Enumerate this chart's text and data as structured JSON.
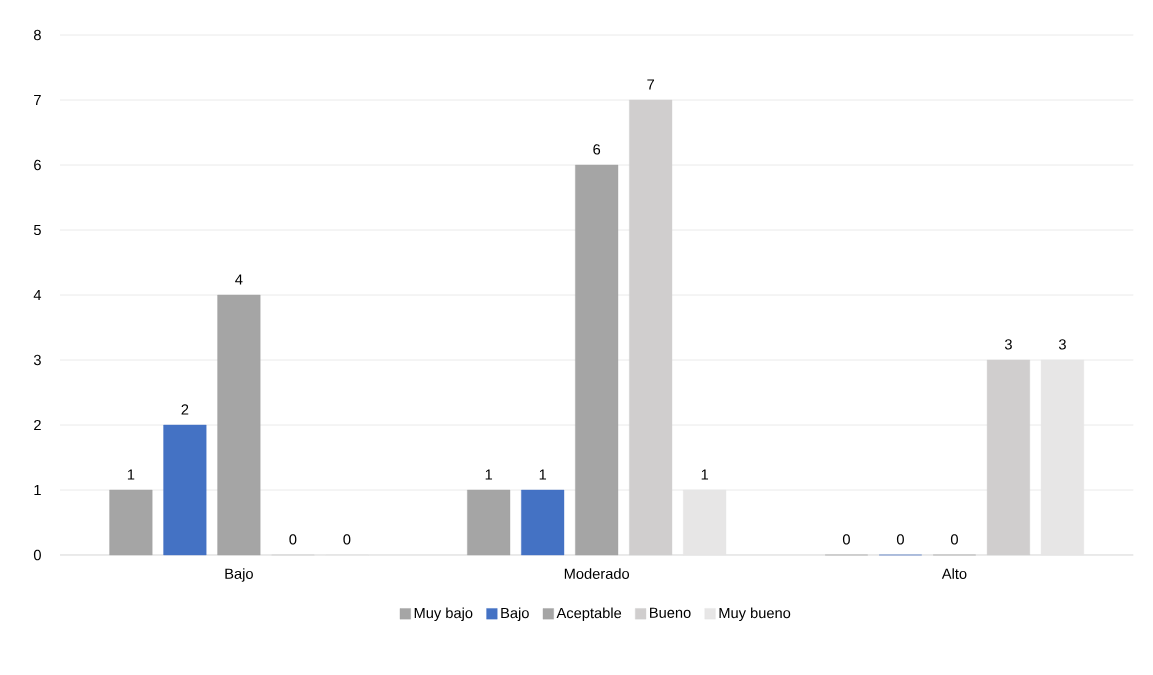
{
  "chart_data": {
    "type": "bar",
    "categories": [
      "Bajo",
      "Moderado",
      "Alto"
    ],
    "series": [
      {
        "name": "Muy bajo",
        "color": "#a5a5a5",
        "values": [
          1,
          1,
          0
        ],
        "value_labels": [
          "1",
          "1",
          "0"
        ]
      },
      {
        "name": "Bajo",
        "color": "#4472c4",
        "values": [
          2,
          1,
          0
        ],
        "value_labels": [
          "2",
          "1",
          "0"
        ]
      },
      {
        "name": "Aceptable",
        "color": "#a5a5a5",
        "values": [
          4,
          6,
          0
        ],
        "value_labels": [
          "4",
          "6",
          "0"
        ]
      },
      {
        "name": "Bueno",
        "color": "#d0cece",
        "values": [
          0,
          7,
          3
        ],
        "value_labels": [
          "0",
          "7",
          "3"
        ]
      },
      {
        "name": "Muy bueno",
        "color": "#e7e6e6",
        "values": [
          0,
          1,
          3
        ],
        "value_labels": [
          "0",
          "1",
          "3"
        ]
      }
    ],
    "ylim": [
      0,
      8
    ],
    "yticks": [
      0,
      1,
      2,
      3,
      4,
      5,
      6,
      7,
      8
    ],
    "grid": "y",
    "legend": "bottom"
  }
}
